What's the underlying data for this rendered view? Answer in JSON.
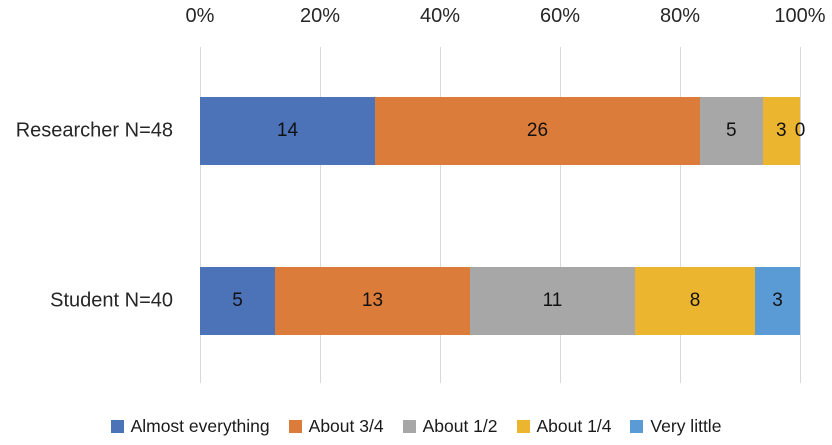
{
  "chart_data": {
    "type": "bar",
    "variant": "stacked-horizontal-100pct",
    "title": "",
    "categories": [
      "Researcher N=48",
      "Student N=40"
    ],
    "category_totals": [
      48,
      40
    ],
    "series": [
      {
        "name": "Almost everything",
        "color": "#4C72B8",
        "values": [
          14,
          5
        ]
      },
      {
        "name": "About 3/4",
        "color": "#DC7C3A",
        "values": [
          26,
          13
        ]
      },
      {
        "name": "About 1/2",
        "color": "#A7A7A7",
        "values": [
          5,
          11
        ]
      },
      {
        "name": "About 1/4",
        "color": "#ECB52F",
        "values": [
          3,
          8
        ]
      },
      {
        "name": "Very little",
        "color": "#5B9BD5",
        "values": [
          0,
          3
        ]
      }
    ],
    "x_axis": {
      "position": "top",
      "tick_labels": [
        "0%",
        "20%",
        "40%",
        "60%",
        "80%",
        "100%"
      ],
      "range": [
        0,
        100
      ],
      "gridlines": true
    },
    "data_labels_visible": true,
    "legend_position": "bottom"
  },
  "colors": {
    "background": "#FFFFFF",
    "gridline": "#D9D9D9",
    "axis_text": "#262626",
    "data_label_text": "#111111"
  }
}
